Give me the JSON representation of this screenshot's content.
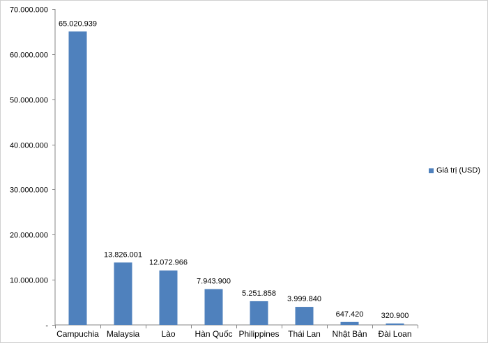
{
  "chart_data": {
    "type": "bar",
    "categories": [
      "Campuchia",
      "Malaysia",
      "Lào",
      "Hàn Quốc",
      "Philippines",
      "Thái Lan",
      "Nhật Bản",
      "Đài Loan"
    ],
    "series": [
      {
        "name": "Giá trị (USD)",
        "values": [
          65020939,
          13826001,
          12072966,
          7943900,
          5251858,
          3999840,
          647420,
          320900
        ],
        "labels": [
          "65.020.939",
          "13.826.001",
          "12.072.966",
          "7.943.900",
          "5.251.858",
          "3.999.840",
          "647.420",
          "320.900"
        ],
        "color": "#4F81BD"
      }
    ],
    "ylim": [
      0,
      70000000
    ],
    "yticks": [
      {
        "value": 0,
        "label": "-"
      },
      {
        "value": 10000000,
        "label": "10.000.000"
      },
      {
        "value": 20000000,
        "label": "20.000.000"
      },
      {
        "value": 30000000,
        "label": "30.000.000"
      },
      {
        "value": 40000000,
        "label": "40.000.000"
      },
      {
        "value": 50000000,
        "label": "50.000.000"
      },
      {
        "value": 60000000,
        "label": "60.000.000"
      },
      {
        "value": 70000000,
        "label": "70.000.000"
      }
    ],
    "grid": false,
    "legend": "right"
  }
}
